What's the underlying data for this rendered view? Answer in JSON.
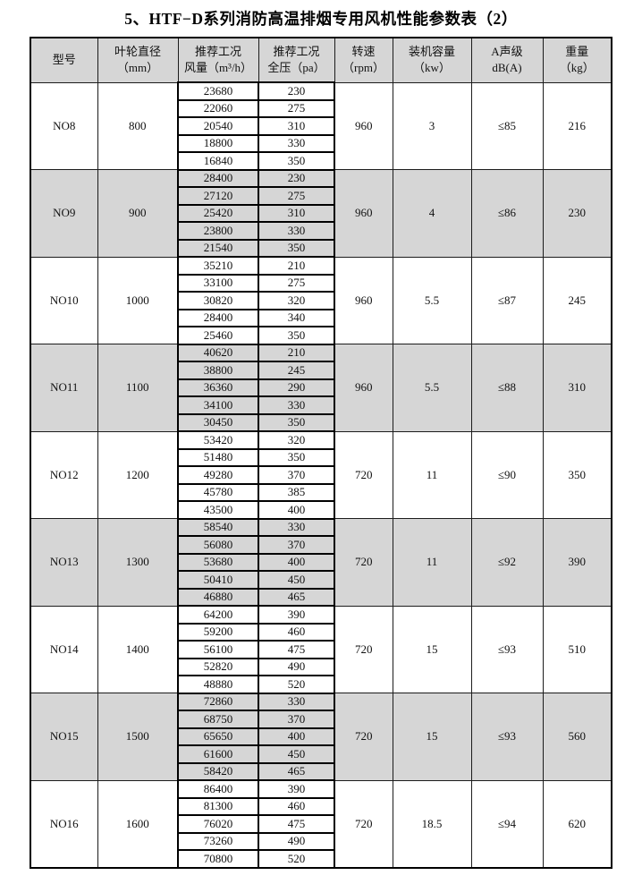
{
  "title": "5、HTF−D系列消防高温排烟专用风机性能参数表（2）",
  "columns": [
    {
      "line1": "型号",
      "line2": ""
    },
    {
      "line1": "叶轮直径",
      "line2": "（mm）"
    },
    {
      "line1": "推荐工况",
      "line2": "风量（m³/h）"
    },
    {
      "line1": "推荐工况",
      "line2": "全压（pa）"
    },
    {
      "line1": "转速",
      "line2": "（rpm）"
    },
    {
      "line1": "装机容量",
      "line2": "（kw）"
    },
    {
      "line1": "A声级",
      "line2": "dB(A)"
    },
    {
      "line1": "重量",
      "line2": "（kg）"
    }
  ],
  "rows": [
    {
      "model": "NO8",
      "diameter": "800",
      "rpm": "960",
      "power": "3",
      "noise": "≤85",
      "weight": "216",
      "shaded": false,
      "points": [
        [
          "23680",
          "230"
        ],
        [
          "22060",
          "275"
        ],
        [
          "20540",
          "310"
        ],
        [
          "18800",
          "330"
        ],
        [
          "16840",
          "350"
        ]
      ]
    },
    {
      "model": "NO9",
      "diameter": "900",
      "rpm": "960",
      "power": "4",
      "noise": "≤86",
      "weight": "230",
      "shaded": true,
      "points": [
        [
          "28400",
          "230"
        ],
        [
          "27120",
          "275"
        ],
        [
          "25420",
          "310"
        ],
        [
          "23800",
          "330"
        ],
        [
          "21540",
          "350"
        ]
      ]
    },
    {
      "model": "NO10",
      "diameter": "1000",
      "rpm": "960",
      "power": "5.5",
      "noise": "≤87",
      "weight": "245",
      "shaded": false,
      "points": [
        [
          "35210",
          "210"
        ],
        [
          "33100",
          "275"
        ],
        [
          "30820",
          "320"
        ],
        [
          "28400",
          "340"
        ],
        [
          "25460",
          "350"
        ]
      ]
    },
    {
      "model": "NO11",
      "diameter": "1100",
      "rpm": "960",
      "power": "5.5",
      "noise": "≤88",
      "weight": "310",
      "shaded": true,
      "points": [
        [
          "40620",
          "210"
        ],
        [
          "38800",
          "245"
        ],
        [
          "36360",
          "290"
        ],
        [
          "34100",
          "330"
        ],
        [
          "30450",
          "350"
        ]
      ]
    },
    {
      "model": "NO12",
      "diameter": "1200",
      "rpm": "720",
      "power": "11",
      "noise": "≤90",
      "weight": "350",
      "shaded": false,
      "points": [
        [
          "53420",
          "320"
        ],
        [
          "51480",
          "350"
        ],
        [
          "49280",
          "370"
        ],
        [
          "45780",
          "385"
        ],
        [
          "43500",
          "400"
        ]
      ]
    },
    {
      "model": "NO13",
      "diameter": "1300",
      "rpm": "720",
      "power": "11",
      "noise": "≤92",
      "weight": "390",
      "shaded": true,
      "points": [
        [
          "58540",
          "330"
        ],
        [
          "56080",
          "370"
        ],
        [
          "53680",
          "400"
        ],
        [
          "50410",
          "450"
        ],
        [
          "46880",
          "465"
        ]
      ]
    },
    {
      "model": "NO14",
      "diameter": "1400",
      "rpm": "720",
      "power": "15",
      "noise": "≤93",
      "weight": "510",
      "shaded": false,
      "points": [
        [
          "64200",
          "390"
        ],
        [
          "59200",
          "460"
        ],
        [
          "56100",
          "475"
        ],
        [
          "52820",
          "490"
        ],
        [
          "48880",
          "520"
        ]
      ]
    },
    {
      "model": "NO15",
      "diameter": "1500",
      "rpm": "720",
      "power": "15",
      "noise": "≤93",
      "weight": "560",
      "shaded": true,
      "points": [
        [
          "72860",
          "330"
        ],
        [
          "68750",
          "370"
        ],
        [
          "65650",
          "400"
        ],
        [
          "61600",
          "450"
        ],
        [
          "58420",
          "465"
        ]
      ]
    },
    {
      "model": "NO16",
      "diameter": "1600",
      "rpm": "720",
      "power": "18.5",
      "noise": "≤94",
      "weight": "620",
      "shaded": false,
      "points": [
        [
          "86400",
          "390"
        ],
        [
          "81300",
          "460"
        ],
        [
          "76020",
          "475"
        ],
        [
          "73260",
          "490"
        ],
        [
          "70800",
          "520"
        ]
      ]
    }
  ],
  "colors": {
    "shaded_row": "#d6d6d6",
    "grid_line": "#1c1c1c",
    "inner_border": "#000000",
    "page_background": "#ffffff"
  }
}
